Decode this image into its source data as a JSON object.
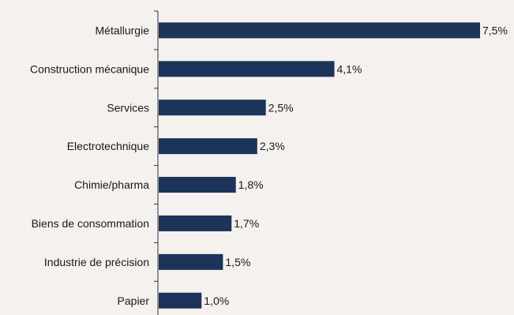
{
  "chart_data": {
    "type": "bar",
    "orientation": "horizontal",
    "categories": [
      "Métallurgie",
      "Construction mécanique",
      "Services",
      "Electrotechnique",
      "Chimie/pharma",
      "Biens de consommation",
      "Industrie de précision",
      "Papier"
    ],
    "values": [
      7.5,
      4.1,
      2.5,
      2.3,
      1.8,
      1.7,
      1.5,
      1.0
    ],
    "value_labels": [
      "7,5%",
      "4,1%",
      "2,5%",
      "2,3%",
      "1,8%",
      "1,7%",
      "1,5%",
      "1,0%"
    ],
    "xlim": [
      0,
      7.5
    ],
    "grid": false,
    "legend": "none",
    "bar_color": "#1c3459",
    "background": "#f4f1ee"
  }
}
